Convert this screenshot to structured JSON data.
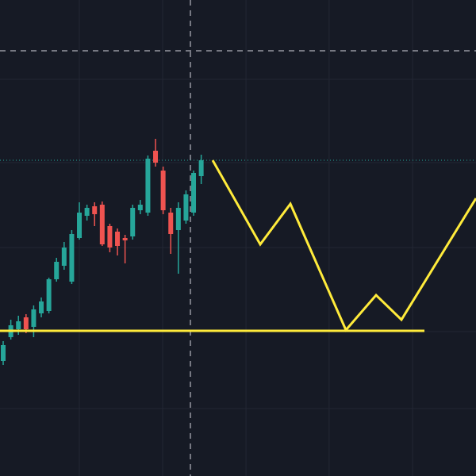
{
  "chart_data": {
    "type": "candlestick",
    "background": "#161a25",
    "up_color": "#26a69a",
    "down_color": "#ef5350",
    "grid": true,
    "grid_color": "#232734",
    "xlim": [
      -0.42,
      62.08
    ],
    "ylim": [
      0,
      600
    ],
    "xticks": [
      10,
      20.94,
      31.88,
      42.8,
      53.75
    ],
    "yticks": [
      85,
      182,
      288,
      395,
      500
    ],
    "open": [
      145,
      175,
      185,
      200,
      188,
      205,
      208,
      248,
      265,
      245,
      300,
      328,
      340,
      342,
      315,
      308,
      300,
      302,
      335,
      332,
      410,
      385,
      332,
      310,
      322,
      332,
      378
    ],
    "close": [
      165,
      190,
      195,
      185,
      210,
      220,
      248,
      270,
      288,
      305,
      332,
      338,
      330,
      292,
      288,
      290,
      297,
      338,
      342,
      400,
      395,
      335,
      305,
      338,
      355,
      382,
      398
    ],
    "high": [
      170,
      197,
      202,
      204,
      215,
      225,
      250,
      275,
      295,
      310,
      345,
      342,
      345,
      346,
      318,
      312,
      304,
      342,
      348,
      404,
      425,
      390,
      338,
      345,
      360,
      385,
      405
    ],
    "low": [
      140,
      172,
      178,
      180,
      175,
      200,
      205,
      245,
      260,
      242,
      298,
      322,
      315,
      290,
      282,
      278,
      268,
      298,
      330,
      328,
      390,
      330,
      280,
      255,
      318,
      328,
      368
    ],
    "pattern": {
      "color": "#ffeb3b",
      "x": [
        27.5,
        33.75,
        37.71,
        45,
        48.96,
        52.29,
        62.08
      ],
      "values": [
        398,
        292,
        343,
        184,
        228,
        197,
        350
      ]
    },
    "support": {
      "color": "#ffeb3b",
      "x": [
        -0.42,
        55.31
      ],
      "value": 183
    },
    "last_price": {
      "color": "#26a69a",
      "value": 398
    },
    "crosshair": {
      "color": "#9598a1",
      "x": 24.58,
      "y": 536
    }
  }
}
